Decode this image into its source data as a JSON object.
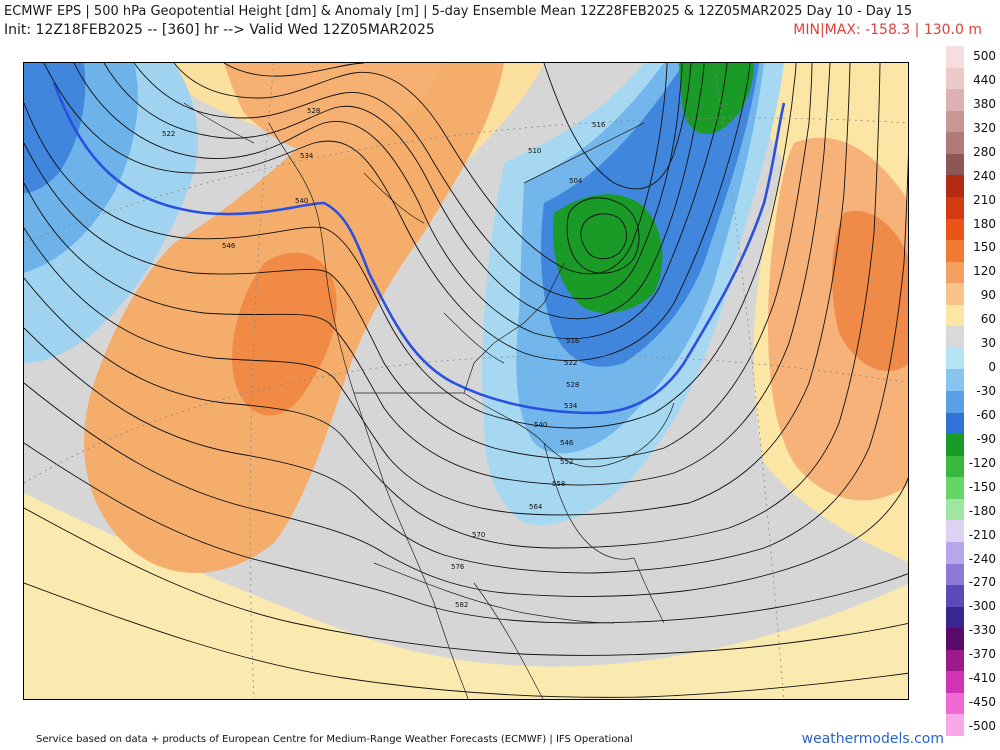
{
  "header": {
    "title_line1": "ECMWF EPS | 500 hPa Geopotential Height [dm] & Anomaly [m] | 5-day Ensemble Mean 12Z28FEB2025 & 12Z05MAR2025   Day 10 - Day 15",
    "title_line2": "Init: 12Z18FEB2025 -- [360] hr --> Valid Wed 12Z05MAR2025",
    "minmax": "MIN|MAX: -158.3 | 130.0 m"
  },
  "colorbar": {
    "labels": [
      "500",
      "440",
      "380",
      "320",
      "280",
      "240",
      "210",
      "180",
      "150",
      "120",
      "90",
      "60",
      "30",
      "0",
      "-30",
      "-60",
      "-90",
      "-120",
      "-150",
      "-180",
      "-210",
      "-240",
      "-270",
      "-300",
      "-330",
      "-370",
      "-410",
      "-450",
      "-500"
    ],
    "colors": [
      "#f7dede",
      "#eccaca",
      "#ddb1b1",
      "#c99696",
      "#b07a7a",
      "#8f5656",
      "#b52b12",
      "#d23a12",
      "#e9541a",
      "#f07a32",
      "#f5a060",
      "#f9c48c",
      "#fbe6a6",
      "#d9d9d9",
      "#b6e4f4",
      "#88c5ee",
      "#5aa0e6",
      "#2f73d8",
      "#1a9b28",
      "#3bb840",
      "#66d466",
      "#9fe6a0",
      "#ddd2f2",
      "#b8a6e8",
      "#8c7ad6",
      "#5a4bb8",
      "#3a2690",
      "#5a0a6a",
      "#9c1a8c",
      "#d232b4",
      "#ee6ad2",
      "#f8a8e8"
    ]
  },
  "height_labels": [
    "522",
    "528",
    "534",
    "540",
    "546",
    "510",
    "516",
    "504",
    "516",
    "522",
    "528",
    "534",
    "540",
    "546",
    "552",
    "558",
    "564",
    "570",
    "576",
    "582"
  ],
  "footer": "Service based on data + products of European Centre for Medium-Range Weather Forecasts (ECMWF) | IFS Operational",
  "brand": "weathermodels.com"
}
